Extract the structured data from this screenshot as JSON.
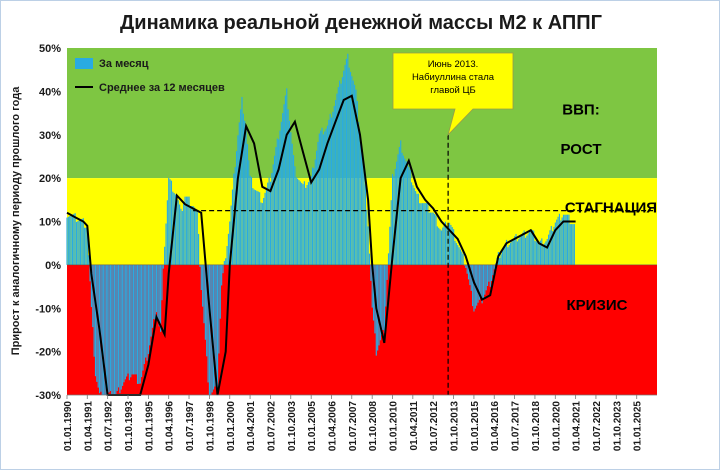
{
  "chart_data": {
    "type": "bar",
    "title": "Динамика реальной денежной массы М2 к АППГ",
    "ylabel": "Прирост к аналогичному периоду прошлого года",
    "ylim": [
      -30,
      50
    ],
    "y_ticks": [
      "50%",
      "40%",
      "30%",
      "20%",
      "10%",
      "0%",
      "-10%",
      "-20%",
      "-30%"
    ],
    "y_tick_values": [
      50,
      40,
      30,
      20,
      10,
      0,
      -10,
      -20,
      -30
    ],
    "x_range": [
      "1990-01-01",
      "2026-04-01"
    ],
    "x_ticks": [
      "01.01.1990",
      "01.04.1991",
      "01.07.1992",
      "01.10.1993",
      "01.01.1995",
      "01.04.1996",
      "01.07.1997",
      "01.10.1998",
      "01.01.2000",
      "01.04.2001",
      "01.07.2002",
      "01.10.2003",
      "01.01.2005",
      "01.04.2006",
      "01.07.2007",
      "01.10.2008",
      "01.01.2010",
      "01.04.2011",
      "01.07.2012",
      "01.10.2013",
      "01.01.2015",
      "01.04.2016",
      "01.07.2017",
      "01.10.2018",
      "01.01.2020",
      "01.04.2021",
      "01.07.2022",
      "01.10.2023",
      "01.01.2025"
    ],
    "bands": [
      {
        "from": 20,
        "to": 50,
        "color": "#7ec642",
        "label": "ВВП:\nРОСТ"
      },
      {
        "from": 0,
        "to": 20,
        "color": "#ffff00",
        "label": "СТАГНАЦИЯ"
      },
      {
        "from": -30,
        "to": 0,
        "color": "#ff0000",
        "label": "КРИЗИС"
      }
    ],
    "legend": {
      "placement": "top-left"
    },
    "series": [
      {
        "name": "За месяц",
        "kind": "bar",
        "color": "#29abe2",
        "points": [
          [
            "1990-01-01",
            12
          ],
          [
            "1990-07-01",
            11
          ],
          [
            "1991-01-01",
            10
          ],
          [
            "1991-04-01",
            9
          ],
          [
            "1991-07-01",
            -10
          ],
          [
            "1991-10-01",
            -25
          ],
          [
            "1992-01-01",
            -30
          ],
          [
            "1992-07-01",
            -30
          ],
          [
            "1993-01-01",
            -30
          ],
          [
            "1993-07-01",
            -27
          ],
          [
            "1994-01-01",
            -25
          ],
          [
            "1994-07-01",
            -27
          ],
          [
            "1995-01-01",
            -20
          ],
          [
            "1995-07-01",
            -10
          ],
          [
            "1995-10-01",
            -16
          ],
          [
            "1996-01-01",
            5
          ],
          [
            "1996-04-01",
            20
          ],
          [
            "1996-10-01",
            16
          ],
          [
            "1997-01-01",
            12
          ],
          [
            "1997-04-01",
            16
          ],
          [
            "1997-10-01",
            14
          ],
          [
            "1998-01-01",
            12
          ],
          [
            "1998-04-01",
            -5
          ],
          [
            "1998-10-01",
            -30
          ],
          [
            "1999-04-01",
            -28
          ],
          [
            "1999-07-01",
            -5
          ],
          [
            "2000-01-01",
            10
          ],
          [
            "2000-07-01",
            30
          ],
          [
            "2000-10-01",
            38
          ],
          [
            "2001-01-01",
            32
          ],
          [
            "2001-04-01",
            20
          ],
          [
            "2001-07-01",
            18
          ],
          [
            "2002-01-01",
            15
          ],
          [
            "2002-07-01",
            20
          ],
          [
            "2003-01-01",
            30
          ],
          [
            "2003-07-01",
            40
          ],
          [
            "2004-01-01",
            22
          ],
          [
            "2004-07-01",
            18
          ],
          [
            "2005-01-01",
            20
          ],
          [
            "2005-07-01",
            30
          ],
          [
            "2006-01-01",
            32
          ],
          [
            "2006-07-01",
            38
          ],
          [
            "2007-01-01",
            45
          ],
          [
            "2007-04-01",
            48
          ],
          [
            "2007-10-01",
            40
          ],
          [
            "2008-04-01",
            22
          ],
          [
            "2008-07-01",
            10
          ],
          [
            "2008-10-01",
            -10
          ],
          [
            "2009-01-01",
            -20
          ],
          [
            "2009-07-01",
            -15
          ],
          [
            "2010-01-01",
            20
          ],
          [
            "2010-07-01",
            28
          ],
          [
            "2011-01-01",
            22
          ],
          [
            "2011-07-01",
            16
          ],
          [
            "2012-01-01",
            14
          ],
          [
            "2012-07-01",
            12
          ],
          [
            "2013-01-01",
            8
          ],
          [
            "2013-07-01",
            10
          ],
          [
            "2014-01-01",
            5
          ],
          [
            "2014-07-01",
            0
          ],
          [
            "2015-01-01",
            -10
          ],
          [
            "2015-07-01",
            -8
          ],
          [
            "2016-01-01",
            -4
          ],
          [
            "2016-07-01",
            2
          ],
          [
            "2017-01-01",
            5
          ],
          [
            "2017-07-01",
            6
          ],
          [
            "2018-01-01",
            7
          ],
          [
            "2018-07-01",
            8
          ],
          [
            "2019-01-01",
            5
          ],
          [
            "2019-07-01",
            6
          ],
          [
            "2020-01-01",
            10
          ],
          [
            "2020-07-01",
            12
          ],
          [
            "2021-01-01",
            10
          ],
          [
            "2021-04-01",
            9
          ]
        ]
      },
      {
        "name": "Среднее за 12 месяцев",
        "kind": "line",
        "color": "#000000",
        "points": [
          [
            "1990-01-01",
            12
          ],
          [
            "1990-07-01",
            11
          ],
          [
            "1991-01-01",
            10
          ],
          [
            "1991-04-01",
            9
          ],
          [
            "1991-07-01",
            -2
          ],
          [
            "1992-01-01",
            -15
          ],
          [
            "1992-07-01",
            -30
          ],
          [
            "1993-07-01",
            -30
          ],
          [
            "1994-07-01",
            -30
          ],
          [
            "1995-01-01",
            -23
          ],
          [
            "1995-07-01",
            -12
          ],
          [
            "1996-01-01",
            -16
          ],
          [
            "1996-04-01",
            -2
          ],
          [
            "1996-10-01",
            16
          ],
          [
            "1997-04-01",
            14
          ],
          [
            "1997-10-01",
            13
          ],
          [
            "1998-04-01",
            12
          ],
          [
            "1998-10-01",
            -10
          ],
          [
            "1999-04-01",
            -30
          ],
          [
            "1999-10-01",
            -20
          ],
          [
            "2000-01-01",
            0
          ],
          [
            "2000-07-01",
            20
          ],
          [
            "2001-01-01",
            32
          ],
          [
            "2001-07-01",
            28
          ],
          [
            "2002-01-01",
            18
          ],
          [
            "2002-07-01",
            17
          ],
          [
            "2003-01-01",
            22
          ],
          [
            "2003-07-01",
            30
          ],
          [
            "2004-01-01",
            33
          ],
          [
            "2004-07-01",
            26
          ],
          [
            "2005-01-01",
            19
          ],
          [
            "2005-07-01",
            22
          ],
          [
            "2006-01-01",
            28
          ],
          [
            "2006-07-01",
            33
          ],
          [
            "2007-01-01",
            38
          ],
          [
            "2007-07-01",
            39
          ],
          [
            "2008-01-01",
            30
          ],
          [
            "2008-07-01",
            15
          ],
          [
            "2008-10-01",
            0
          ],
          [
            "2009-01-01",
            -10
          ],
          [
            "2009-07-01",
            -18
          ],
          [
            "2010-01-01",
            2
          ],
          [
            "2010-07-01",
            20
          ],
          [
            "2011-01-01",
            24
          ],
          [
            "2011-07-01",
            18
          ],
          [
            "2012-01-01",
            15
          ],
          [
            "2012-07-01",
            13
          ],
          [
            "2013-01-01",
            10
          ],
          [
            "2013-07-01",
            8
          ],
          [
            "2014-01-01",
            6
          ],
          [
            "2014-07-01",
            2
          ],
          [
            "2015-01-01",
            -4
          ],
          [
            "2015-07-01",
            -8
          ],
          [
            "2016-01-01",
            -7
          ],
          [
            "2016-07-01",
            2
          ],
          [
            "2017-01-01",
            5
          ],
          [
            "2017-07-01",
            6
          ],
          [
            "2018-01-01",
            7
          ],
          [
            "2018-07-01",
            8
          ],
          [
            "2019-01-01",
            5
          ],
          [
            "2019-07-01",
            4
          ],
          [
            "2020-01-01",
            8
          ],
          [
            "2020-07-01",
            10
          ],
          [
            "2021-01-01",
            10
          ],
          [
            "2021-04-01",
            10
          ]
        ]
      }
    ],
    "annotation": {
      "text": "Июнь 2013.\nНабиуллина стала\nглавой ЦБ",
      "date": "2013-06-01",
      "value": 12.5,
      "box_color": "#ffff00"
    }
  }
}
